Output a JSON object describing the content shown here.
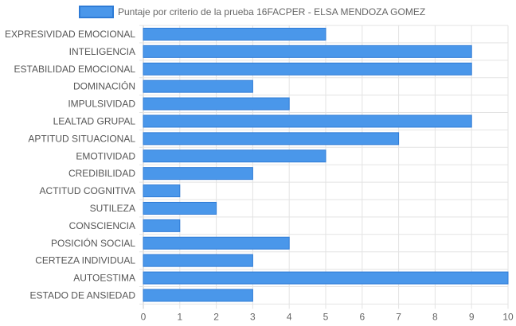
{
  "chart_data": {
    "type": "bar",
    "orientation": "horizontal",
    "legend": {
      "position": "top",
      "color": "#4a97ea",
      "border_color": "#2e7bd6"
    },
    "series": [
      {
        "name": "Puntaje por criterio de la prueba 16FACPER - ELSA MENDOZA GOMEZ",
        "values": [
          5,
          9,
          9,
          3,
          4,
          9,
          7,
          5,
          3,
          1,
          2,
          1,
          4,
          3,
          10,
          3
        ]
      }
    ],
    "categories": [
      "EXPRESIVIDAD EMOCIONAL",
      "INTELIGENCIA",
      "ESTABILIDAD EMOCIONAL",
      "DOMINACIÓN",
      "IMPULSIVIDAD",
      "LEALTAD GRUPAL",
      "APTITUD SITUACIONAL",
      "EMOTIVIDAD",
      "CREDIBILIDAD",
      "ACTITUD COGNITIVA",
      "SUTILEZA",
      "CONSCIENCIA",
      "POSICIÓN SOCIAL",
      "CERTEZA INDIVIDUAL",
      "AUTOESTIMA",
      "ESTADO DE ANSIEDAD"
    ],
    "xlim": [
      0,
      10
    ],
    "xticks": [
      "0",
      "1",
      "2",
      "3",
      "4",
      "5",
      "6",
      "7",
      "8",
      "9",
      "10"
    ],
    "grid": true,
    "colors": {
      "bar_fill": "#4a97ea",
      "bar_stroke": "#2e7bd6",
      "grid": "#e3e3e3",
      "axis": "#c8c8c8"
    }
  }
}
